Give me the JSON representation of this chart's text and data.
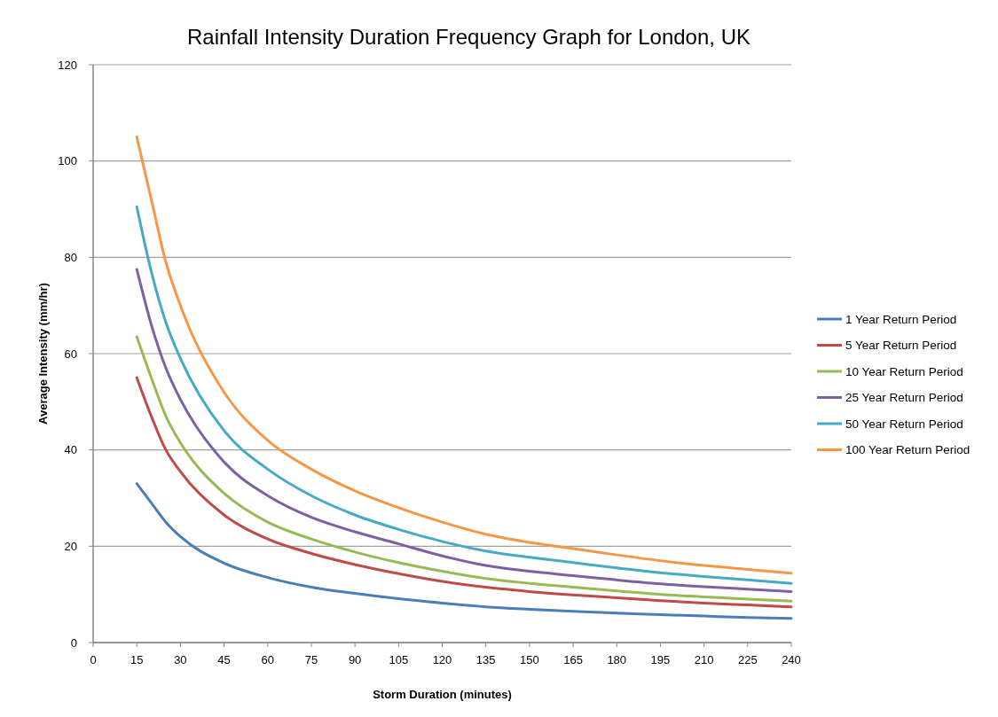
{
  "chart_data": {
    "type": "line",
    "title": "Rainfall Intensity Duration Frequency Graph for London, UK",
    "xlabel": "Storm Duration (minutes)",
    "ylabel": "Average Intensity (mm/hr)",
    "x": [
      15,
      20,
      25,
      30,
      45,
      60,
      75,
      90,
      105,
      120,
      135,
      150,
      165,
      180,
      195,
      210,
      225,
      240
    ],
    "xlim": [
      0,
      240
    ],
    "xticks": [
      0,
      15,
      30,
      45,
      60,
      75,
      90,
      105,
      120,
      135,
      150,
      165,
      180,
      195,
      210,
      225,
      240
    ],
    "ylim": [
      0,
      120
    ],
    "yticks": [
      0,
      20,
      40,
      60,
      80,
      100,
      120
    ],
    "grid": "y",
    "legend": "right",
    "marker": "none",
    "series": [
      {
        "name": "1 Year Return Period",
        "color": "#4a7ebb",
        "values": [
          33,
          29,
          25,
          22,
          16.5,
          13.5,
          11.5,
          10.2,
          9.1,
          8.2,
          7.4,
          6.9,
          6.5,
          6.1,
          5.8,
          5.5,
          5.2,
          5.0
        ]
      },
      {
        "name": "5 Year Return Period",
        "color": "#be4b48",
        "values": [
          55,
          47,
          40,
          35.5,
          26.5,
          21.5,
          18.5,
          16.2,
          14.3,
          12.7,
          11.5,
          10.6,
          9.9,
          9.3,
          8.7,
          8.2,
          7.8,
          7.4
        ]
      },
      {
        "name": "10 Year Return Period",
        "color": "#98b954",
        "values": [
          63.5,
          55,
          47,
          41.5,
          31,
          25,
          21.5,
          18.8,
          16.6,
          14.8,
          13.3,
          12.3,
          11.5,
          10.7,
          10,
          9.5,
          9,
          8.6
        ]
      },
      {
        "name": "25 Year Return Period",
        "color": "#7d60a0",
        "values": [
          77.5,
          66,
          57,
          50.5,
          37.5,
          30.5,
          26,
          23,
          20.5,
          18,
          16,
          14.8,
          13.9,
          13,
          12.2,
          11.6,
          11.1,
          10.6
        ]
      },
      {
        "name": "50 Year Return Period",
        "color": "#46aac5",
        "values": [
          90.5,
          77,
          66.5,
          59,
          44,
          36,
          30.5,
          26.5,
          23.5,
          21,
          19,
          17.7,
          16.6,
          15.5,
          14.5,
          13.7,
          13,
          12.3
        ]
      },
      {
        "name": "100 Year Return Period",
        "color": "#f79646",
        "values": [
          105,
          92,
          79,
          70,
          52,
          42,
          36,
          31.5,
          28,
          25,
          22.5,
          20.8,
          19.5,
          18.2,
          17,
          16,
          15.2,
          14.4
        ]
      }
    ]
  }
}
